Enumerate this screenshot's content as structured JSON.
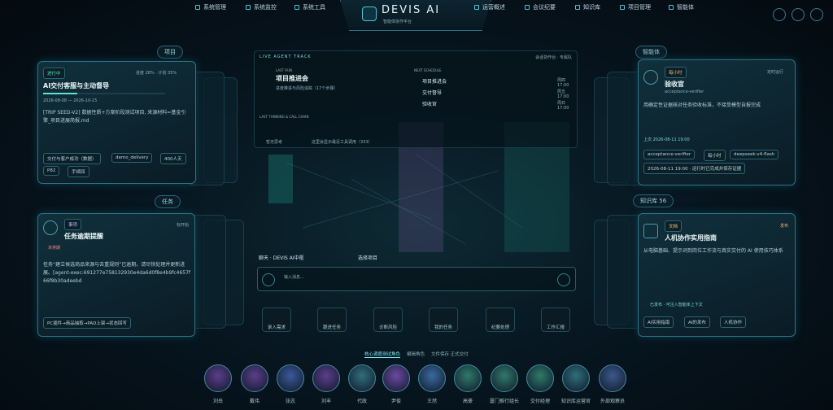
{
  "nav": {
    "left": [
      "系统管理",
      "系统监控",
      "系统工具"
    ],
    "right": [
      "运营概述",
      "会议纪要",
      "知识库",
      "项目管理",
      "智能体"
    ]
  },
  "brand": {
    "title": "DEVIS AI",
    "subtitle": "智能体协作平台"
  },
  "project_panel": {
    "label": "项目",
    "card": {
      "status": "进行中",
      "progress": "进度 28% · 计划 35%",
      "title": "AI交付客服与主动督导",
      "dates": "2026-08-08 — 2026-10-15",
      "description": "[TRIP SEED-V2] 数据性质+方案阶段测试项目, 来源材料=基金引擎_项目进展简报.md",
      "tags": [
        "交付与客户成功（数据）",
        "demo_delivery",
        "400人天",
        "P82",
        "手续回"
      ]
    }
  },
  "task_panel": {
    "label": "任务",
    "card": {
      "type": "事项",
      "title": "任务逾期提醒",
      "state": "标开始",
      "schedule": "未排期",
      "description": "任务“建立候选商品来源与去重规则”已逾期。请尽快处理并更新进展。[agent-exec:691277e758132930e4da6d0f8e4b9fc4657f66f8b30adeebd",
      "tag": "PC插件→商品抽取→PAD上架→状态回写"
    }
  },
  "center": {
    "track": "LIVE AGENT TRACK",
    "session": "会话协作台 · 专属队",
    "last_run_label": "LAST RUN",
    "last_run_title": "项目推进会",
    "last_run_sub": "进度推进与风险追踪（17个步骤）",
    "next_label": "NEXT SCHEDULE",
    "next": [
      {
        "name": "项目推进会",
        "time": "周四 17:00"
      },
      {
        "name": "交付督导",
        "time": "周五 17:00"
      },
      {
        "name": "验收官",
        "time": "周日 17:00"
      }
    ],
    "chain_label": "LAST THINKING & CALL CHAIN",
    "chain_empty": "暂无思考",
    "chain_hint": "这里会显示最近工具调用（333）",
    "chat_title": "聊天 · DEVIS AI中枢",
    "chat_project": "选择项目",
    "chat_placeholder": "输入消息...",
    "actions": [
      "录入需求",
      "跟进任务",
      "诊断风险",
      "我的任务",
      "纪要处理",
      "工作汇报"
    ]
  },
  "bottom": {
    "tabs": [
      "核心调度测试角色",
      "编辑角色",
      "文件保存 正式交付"
    ],
    "agents": [
      "刘岳",
      "戴伟",
      "张志",
      "刘丰",
      "代政",
      "尹俊",
      "王然",
      "高豪",
      "厦门推行组长",
      "交付经理",
      "知识库运营官",
      "外部观察员"
    ]
  },
  "agent_panel": {
    "label": "智能体",
    "card": {
      "freq": "每小时",
      "mode": "定时运行",
      "title": "验收官",
      "id": "acceptance-verifier",
      "description": "用确定性证据核对任务验收标准，不接受模型自报完成",
      "last": "上次 2026-08-11 19:00",
      "tags": [
        "acceptance-verifier",
        "每小时",
        "deepseek-v4-flash",
        "2026-08-11 19:00 · 运行时已完成并保存证据"
      ]
    }
  },
  "kb_panel": {
    "label": "知识库",
    "count": "56",
    "card": {
      "type": "文档",
      "state": "发布",
      "title": "人机协作实用指南",
      "description": "从电脑基础、提示词到岗位工作流与真实交付的 AI 使用技巧体系",
      "status": "已发布 · 可注入智能体上下文",
      "tags": [
        "AI实用指南",
        "AI的发布",
        "人机协作"
      ]
    }
  }
}
